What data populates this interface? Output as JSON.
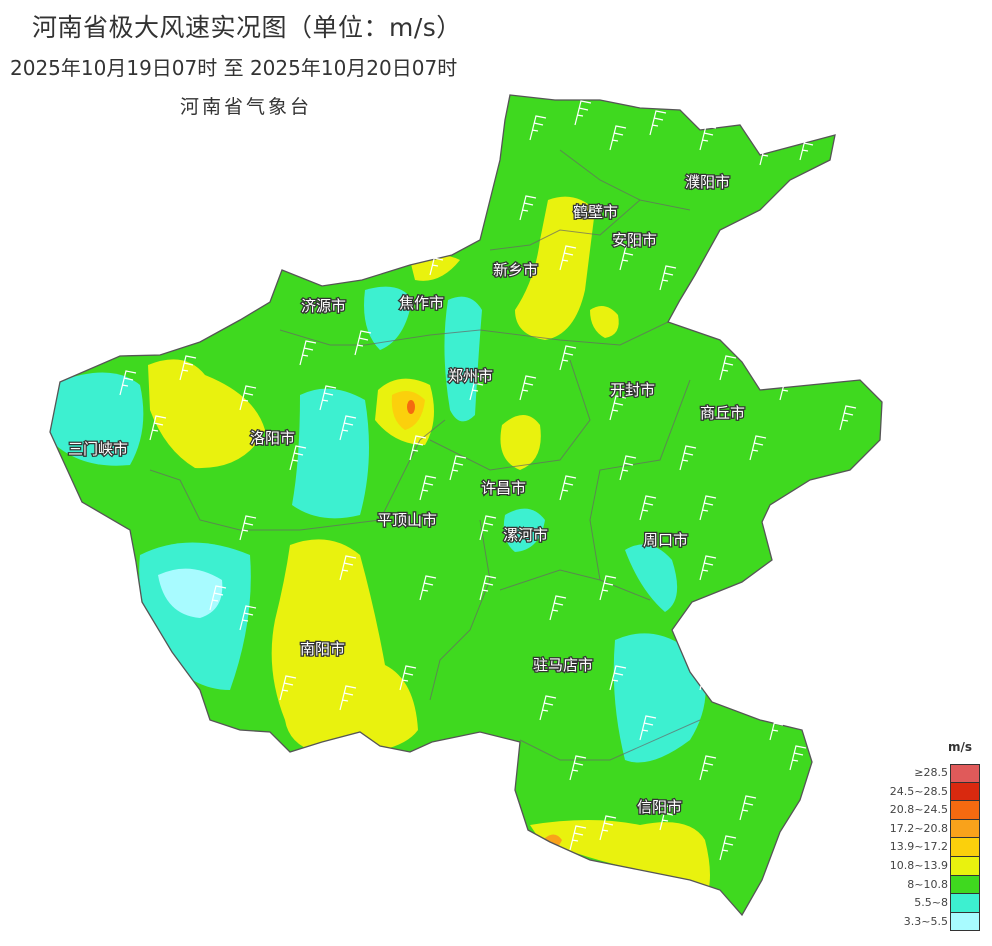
{
  "header": {
    "title": "河南省极大风速实况图（单位：m/s）",
    "subtitle": "2025年10月19日07时  至  2025年10月20日07时",
    "agency": "河南省气象台"
  },
  "map": {
    "region": "河南省",
    "cities": [
      "濮阳市",
      "鹤壁市",
      "安阳市",
      "新乡市",
      "济源市",
      "焦作市",
      "郑州市",
      "开封市",
      "商丘市",
      "三门峡市",
      "洛阳市",
      "许昌市",
      "平顶山市",
      "漯河市",
      "周口市",
      "南阳市",
      "驻马店市",
      "信阳市"
    ]
  },
  "legend": {
    "unit": "m/s",
    "items": [
      {
        "label": "≥28.5",
        "color": "#e05a5a"
      },
      {
        "label": "24.5~28.5",
        "color": "#d9290f"
      },
      {
        "label": "20.8~24.5",
        "color": "#f56a10"
      },
      {
        "label": "17.2~20.8",
        "color": "#f9a21b"
      },
      {
        "label": "13.9~17.2",
        "color": "#fbd00c"
      },
      {
        "label": "10.8~13.9",
        "color": "#e9f20e"
      },
      {
        "label": "8~10.8",
        "color": "#3fd91f"
      },
      {
        "label": "5.5~8",
        "color": "#3df0d0"
      },
      {
        "label": "3.3~5.5",
        "color": "#a8fbff"
      }
    ]
  }
}
